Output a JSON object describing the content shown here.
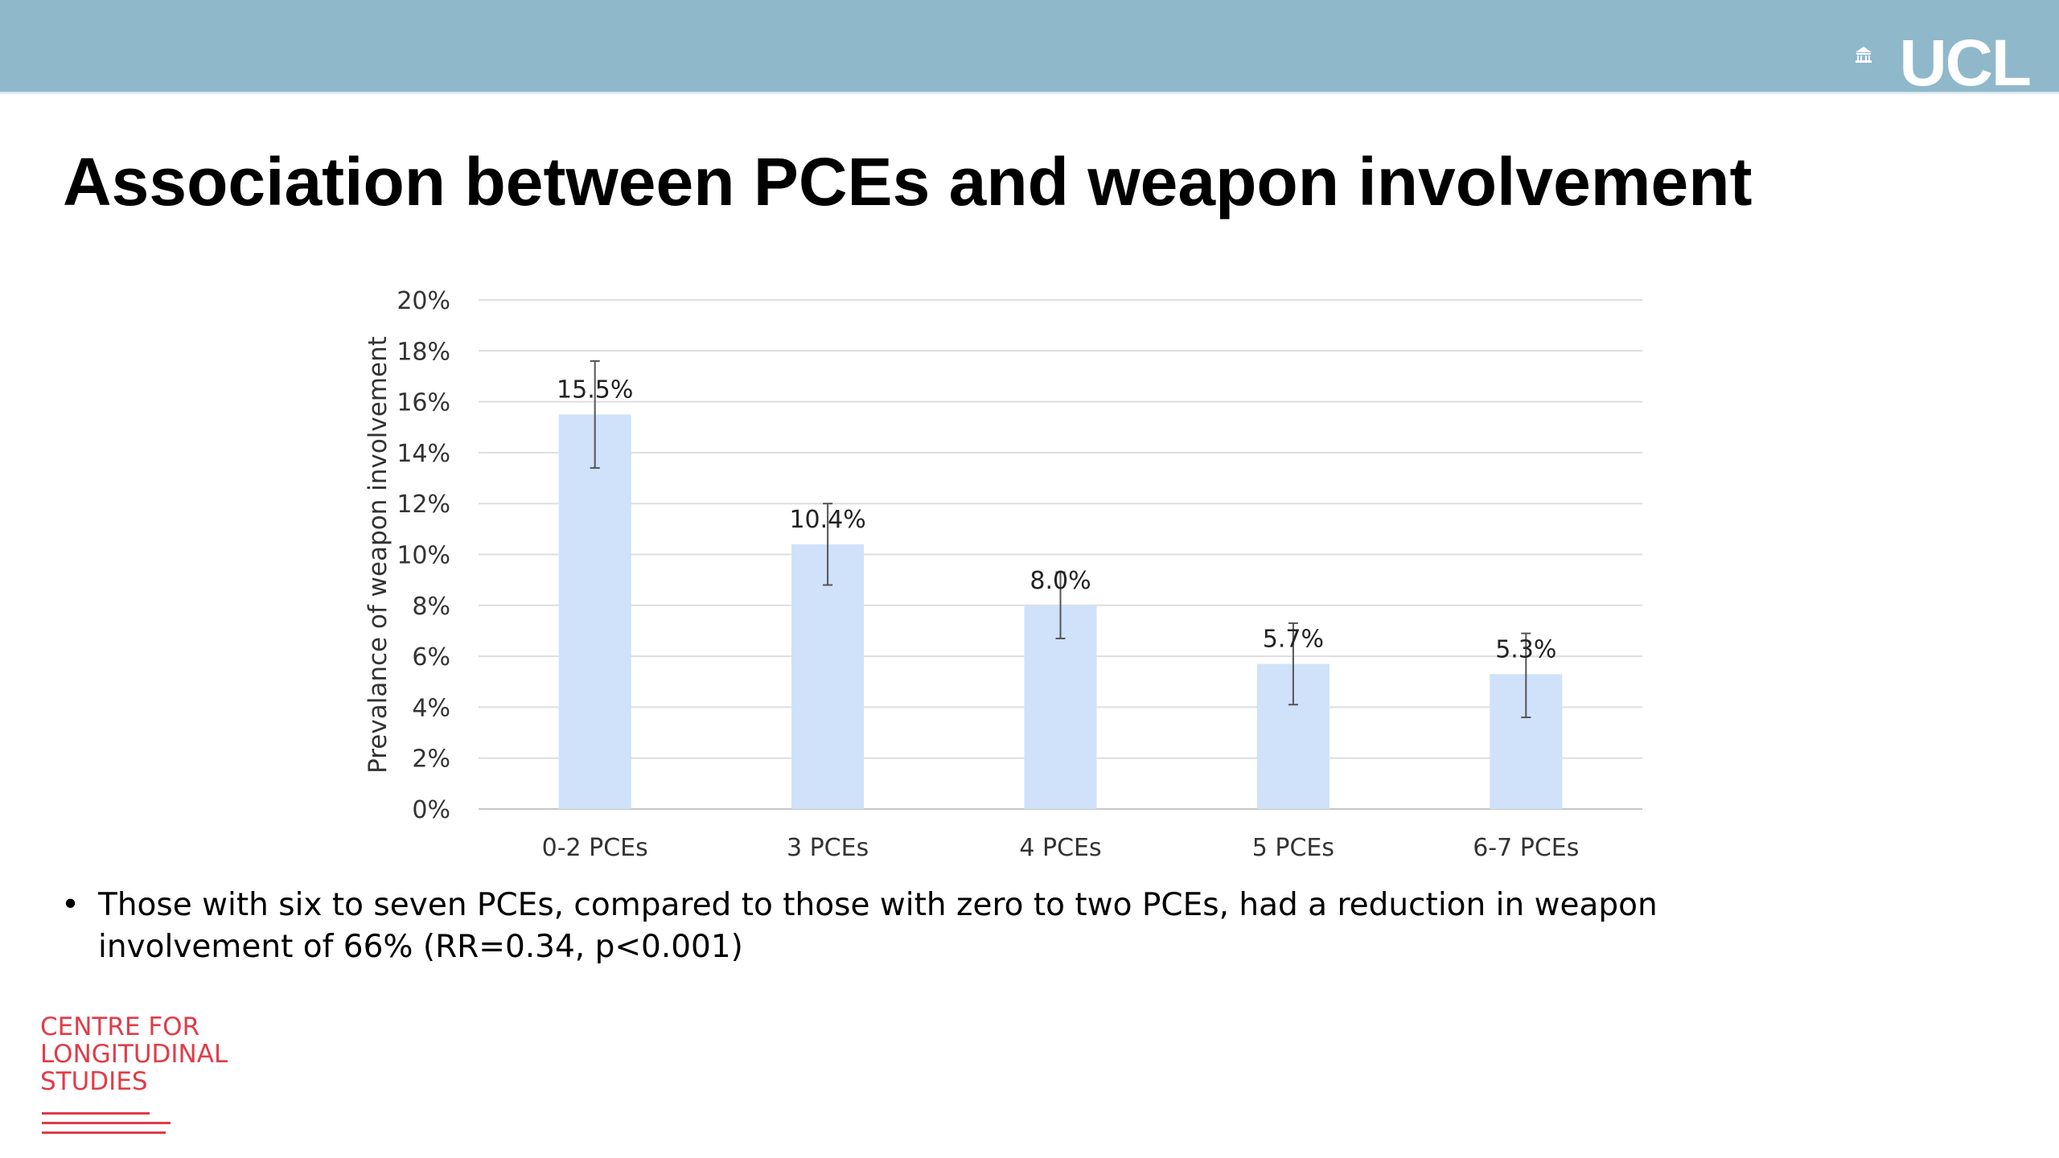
{
  "header": {
    "logo_text": "UCL",
    "logo_icon": "portico-icon",
    "band_color": "#8fb8cb"
  },
  "slide": {
    "title": "Association between PCEs and weapon involvement",
    "bullet_text": "Those with six to seven PCEs, compared to those with zero to two PCEs, had a reduction in weapon involvement of 66% (RR=0.34, p<0.001)",
    "bullet_glyph": "•"
  },
  "footer_logo": {
    "lines": [
      "CENTRE FOR",
      "LONGITUDINAL",
      "STUDIES"
    ],
    "color": "#e03c48"
  },
  "chart_data": {
    "type": "bar",
    "categories": [
      "0-2 PCEs",
      "3 PCEs",
      "4 PCEs",
      "5 PCEs",
      "6-7 PCEs"
    ],
    "values": [
      15.5,
      10.4,
      8.0,
      5.7,
      5.3
    ],
    "data_labels": [
      "15.5%",
      "10.4%",
      "8.0%",
      "5.7%",
      "5.3%"
    ],
    "error_low": [
      13.4,
      8.8,
      6.7,
      4.1,
      3.6
    ],
    "error_high": [
      17.6,
      12.0,
      9.3,
      7.3,
      6.9
    ],
    "ylabel": "Prevalance of weapon involvement",
    "xlabel": "",
    "ylim": [
      0,
      20
    ],
    "yticks": [
      0,
      2,
      4,
      6,
      8,
      10,
      12,
      14,
      16,
      18,
      20
    ],
    "ytick_labels": [
      "0%",
      "2%",
      "4%",
      "6%",
      "8%",
      "10%",
      "12%",
      "14%",
      "16%",
      "18%",
      "20%"
    ],
    "grid": true,
    "legend": "none",
    "bar_color": "#cfe2f9",
    "error_bar_color": "#555555"
  }
}
